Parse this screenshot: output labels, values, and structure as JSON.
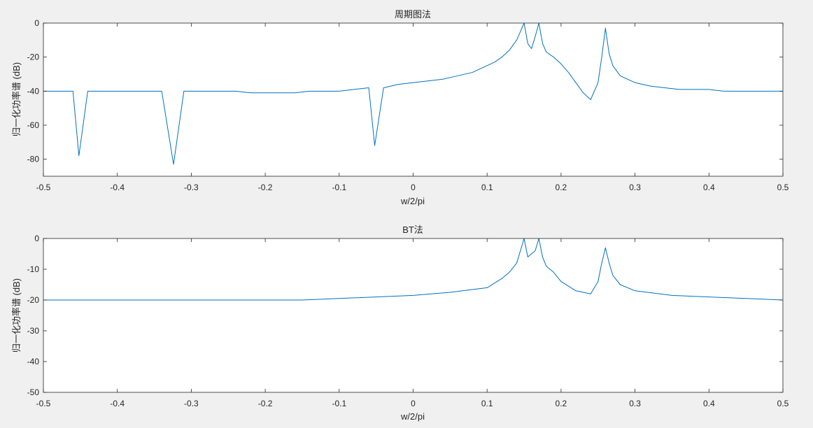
{
  "chart_data": [
    {
      "type": "line",
      "title": "周期图法",
      "xlabel": "w/2/pi",
      "ylabel": "归一化功率谱 (dB)",
      "xlim": [
        -0.5,
        0.5
      ],
      "ylim": [
        -90,
        0
      ],
      "x_ticks": [
        -0.5,
        -0.4,
        -0.3,
        -0.2,
        -0.1,
        0,
        0.1,
        0.2,
        0.3,
        0.4,
        0.5
      ],
      "x_tick_labels": [
        "-0.5",
        "-0.4",
        "-0.3",
        "-0.2",
        "-0.1",
        "0",
        "0.1",
        "0.2",
        "0.3",
        "0.4",
        "0.5"
      ],
      "y_ticks": [
        0,
        -20,
        -40,
        -60,
        -80
      ],
      "y_tick_labels": [
        "0",
        "-20",
        "-40",
        "-60",
        "-80"
      ],
      "grid": false,
      "line_color": "#0072BD",
      "series": [
        {
          "x": [
            -0.5,
            -0.48,
            -0.46,
            -0.452,
            -0.44,
            -0.42,
            -0.4,
            -0.38,
            -0.36,
            -0.34,
            -0.324,
            -0.31,
            -0.3,
            -0.28,
            -0.26,
            -0.24,
            -0.22,
            -0.2,
            -0.18,
            -0.16,
            -0.14,
            -0.12,
            -0.1,
            -0.08,
            -0.06,
            -0.052,
            -0.04,
            -0.02,
            0,
            0.02,
            0.04,
            0.06,
            0.08,
            0.09,
            0.1,
            0.11,
            0.12,
            0.13,
            0.14,
            0.145,
            0.15,
            0.155,
            0.16,
            0.165,
            0.17,
            0.175,
            0.18,
            0.19,
            0.2,
            0.21,
            0.22,
            0.23,
            0.24,
            0.25,
            0.255,
            0.26,
            0.265,
            0.27,
            0.28,
            0.3,
            0.32,
            0.34,
            0.36,
            0.38,
            0.4,
            0.42,
            0.44,
            0.46,
            0.48,
            0.495,
            0.5
          ],
          "y": [
            -40,
            -40,
            -40,
            -78,
            -40,
            -40,
            -40,
            -40,
            -40,
            -40,
            -83,
            -40,
            -40,
            -40,
            -40,
            -40,
            -41,
            -41,
            -41,
            -41,
            -40,
            -40,
            -40,
            -39,
            -38,
            -72,
            -38,
            -36,
            -35,
            -34,
            -33,
            -31,
            -29,
            -27,
            -25,
            -23,
            -20,
            -16,
            -10,
            -5,
            0,
            -12,
            -15,
            -8,
            0,
            -12,
            -17,
            -20,
            -24,
            -29,
            -35,
            -41,
            -45,
            -35,
            -20,
            -3,
            -18,
            -25,
            -31,
            -35,
            -37,
            -38,
            -39,
            -39,
            -39,
            -40,
            -40,
            -40,
            -40,
            -40,
            -40
          ]
        }
      ]
    },
    {
      "type": "line",
      "title": "BT法",
      "xlabel": "w/2/pi",
      "ylabel": "归一化功率谱 (dB)",
      "xlim": [
        -0.5,
        0.5
      ],
      "ylim": [
        -50,
        0
      ],
      "x_ticks": [
        -0.5,
        -0.4,
        -0.3,
        -0.2,
        -0.1,
        0,
        0.1,
        0.2,
        0.3,
        0.4,
        0.5
      ],
      "x_tick_labels": [
        "-0.5",
        "-0.4",
        "-0.3",
        "-0.2",
        "-0.1",
        "0",
        "0.1",
        "0.2",
        "0.3",
        "0.4",
        "0.5"
      ],
      "y_ticks": [
        0,
        -10,
        -20,
        -30,
        -40,
        -50
      ],
      "y_tick_labels": [
        "0",
        "-10",
        "-20",
        "-30",
        "-40",
        "-50"
      ],
      "grid": false,
      "line_color": "#0072BD",
      "series": [
        {
          "x": [
            -0.5,
            -0.45,
            -0.4,
            -0.35,
            -0.3,
            -0.25,
            -0.2,
            -0.15,
            -0.1,
            -0.05,
            0,
            0.05,
            0.1,
            0.12,
            0.13,
            0.14,
            0.145,
            0.15,
            0.155,
            0.16,
            0.165,
            0.17,
            0.175,
            0.18,
            0.19,
            0.2,
            0.22,
            0.24,
            0.25,
            0.255,
            0.26,
            0.265,
            0.27,
            0.28,
            0.3,
            0.35,
            0.4,
            0.45,
            0.5
          ],
          "y": [
            -20,
            -20,
            -20,
            -20,
            -20,
            -20,
            -20,
            -20,
            -19.5,
            -19,
            -18.5,
            -17.5,
            -16,
            -13,
            -11,
            -8,
            -4,
            0,
            -6,
            -5,
            -4,
            0,
            -6,
            -9,
            -11,
            -14,
            -17,
            -18,
            -14,
            -8,
            -3,
            -8,
            -12,
            -15,
            -17,
            -18.5,
            -19,
            -19.5,
            -20
          ]
        }
      ]
    }
  ]
}
